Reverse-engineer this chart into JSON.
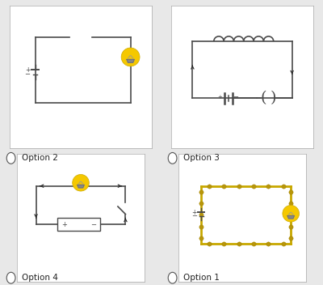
{
  "bg_color": "#e8e8e8",
  "panel_color": "#ffffff",
  "line_color": "#4a4a4a",
  "highlight_color": "#c8a800",
  "dot_color": "#b8960a",
  "bulb_color": "#f5c800",
  "font_size": 7.5,
  "option_labels": [
    "Option 2",
    "Option 3",
    "Option 4",
    "Option 1"
  ]
}
